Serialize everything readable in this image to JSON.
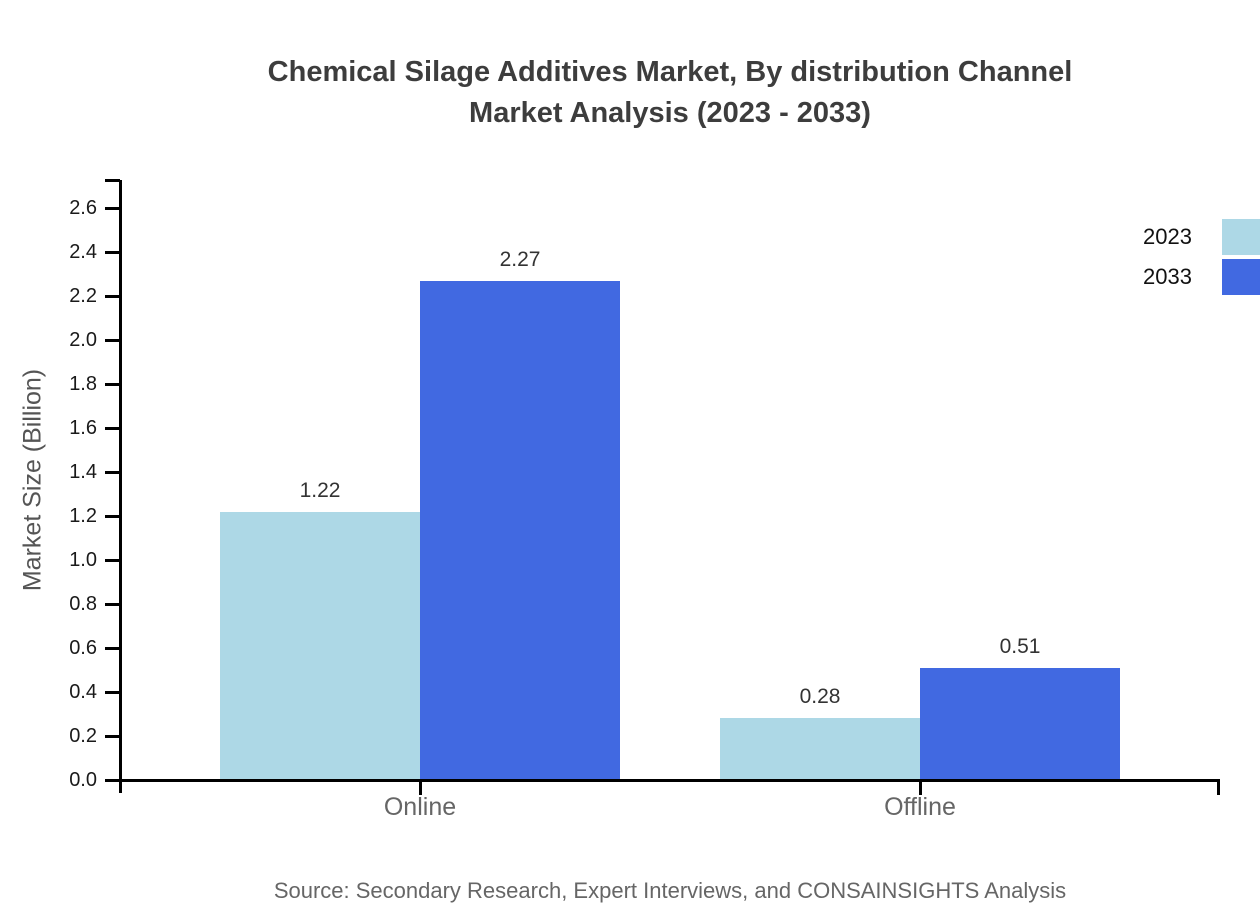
{
  "title": {
    "line1": "Chemical Silage Additives Market, By distribution Channel",
    "line2": "Market Analysis (2023 - 2033)"
  },
  "chart_data": {
    "type": "bar",
    "title": "Chemical Silage Additives Market, By distribution Channel Market Analysis (2023 - 2033)",
    "categories": [
      "Online",
      "Offline"
    ],
    "series": [
      {
        "name": "2023",
        "color": "#ADD8E6",
        "values": [
          1.22,
          0.28
        ]
      },
      {
        "name": "2033",
        "color": "#4169E1",
        "values": [
          2.27,
          0.51
        ]
      }
    ],
    "xlabel": "",
    "ylabel": "Market Size (Billion)",
    "ylim": [
      0,
      2.7
    ],
    "yticks": [
      "0.0",
      "0.2",
      "0.4",
      "0.6",
      "0.8",
      "1.0",
      "1.2",
      "1.4",
      "1.6",
      "1.8",
      "2.0",
      "2.2",
      "2.4",
      "2.6"
    ],
    "grid": false,
    "legend_position": "top-right",
    "value_labels_shown": true,
    "axis_color": "#000000",
    "label_color": "#333333",
    "category_label_color": "#666666"
  },
  "source_note": "Source: Secondary Research, Expert Interviews, and CONSAINSIGHTS Analysis"
}
